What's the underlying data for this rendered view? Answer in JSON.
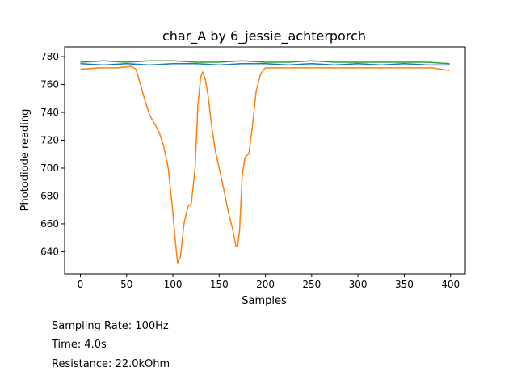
{
  "chart_data": {
    "type": "line",
    "title": "char_A by 6_jessie_achterporch",
    "xlabel": "Samples",
    "ylabel": "Photodiode reading",
    "xlim": [
      -17,
      416
    ],
    "ylim": [
      624,
      787
    ],
    "xticks": [
      0,
      50,
      100,
      150,
      200,
      250,
      300,
      350,
      400
    ],
    "yticks": [
      640,
      660,
      680,
      700,
      720,
      740,
      760,
      780
    ],
    "grid": false,
    "series": [
      {
        "color": "#1f77b4",
        "x": [
          0,
          25,
          50,
          75,
          100,
          125,
          150,
          175,
          200,
          225,
          250,
          275,
          300,
          325,
          350,
          375,
          399
        ],
        "values": [
          775,
          774,
          775,
          774,
          775,
          775,
          774,
          775,
          775,
          774,
          775,
          774,
          775,
          774,
          775,
          774,
          774
        ]
      },
      {
        "color": "#ff7f0e",
        "x": [
          0,
          20,
          40,
          55,
          60,
          65,
          70,
          75,
          80,
          85,
          90,
          95,
          100,
          103,
          105,
          108,
          112,
          116,
          120,
          124,
          127,
          130,
          132,
          135,
          138,
          142,
          146,
          150,
          155,
          160,
          165,
          168,
          170,
          172,
          175,
          178,
          182,
          186,
          190,
          195,
          200,
          220,
          240,
          260,
          280,
          300,
          320,
          340,
          360,
          380,
          399
        ],
        "values": [
          771,
          772,
          772,
          773,
          771,
          760,
          748,
          738,
          732,
          726,
          716,
          700,
          668,
          645,
          632,
          636,
          660,
          672,
          675,
          700,
          745,
          765,
          769,
          764,
          752,
          730,
          712,
          700,
          685,
          668,
          655,
          644,
          644,
          655,
          695,
          708,
          710,
          730,
          755,
          768,
          772,
          772,
          772,
          772,
          772,
          772,
          772,
          772,
          772,
          772,
          770
        ]
      },
      {
        "color": "#2ca02c",
        "x": [
          0,
          25,
          50,
          75,
          100,
          125,
          150,
          175,
          200,
          225,
          250,
          275,
          300,
          325,
          350,
          375,
          399
        ],
        "values": [
          776,
          777,
          776,
          777,
          777,
          776,
          776,
          777,
          776,
          776,
          777,
          776,
          776,
          776,
          776,
          776,
          775
        ]
      }
    ]
  },
  "info": {
    "sampling_rate": "Sampling Rate: 100Hz",
    "time": "Time: 4.0s",
    "resistance": "Resistance: 22.0kOhm"
  }
}
